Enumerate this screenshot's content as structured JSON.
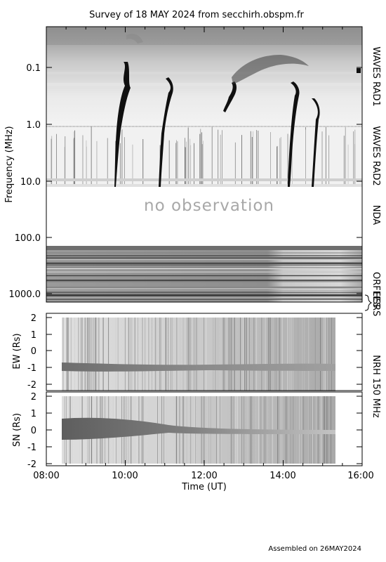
{
  "title": "Survey of 18 MAY 2024 from secchirh.obspm.fr",
  "footer": "Assembled on 26MAY2024",
  "no_observation": "no observation",
  "colors": {
    "background": "#ffffff",
    "axes": "#000000",
    "no_observation_text": "#a8a8a8"
  },
  "chart_data": [
    {
      "type": "heatmap",
      "panel": "dynamic spectrum",
      "ylabel": "Frequency (MHz)",
      "yscale": "log",
      "yaxis_inverted": true,
      "ylim": [
        0.02,
        1500
      ],
      "y_ticks": [
        "0.1",
        "1.0",
        "10.0",
        "100.0",
        "1000.0"
      ],
      "bands": [
        {
          "name": "WAVES RAD1",
          "freq_range_mhz": [
            0.02,
            1.0
          ],
          "has_data": true
        },
        {
          "name": "WAVES RAD2",
          "freq_range_mhz": [
            1.0,
            14.0
          ],
          "has_data": true
        },
        {
          "name": "NDA",
          "freq_range_mhz": [
            14.0,
            180.0
          ],
          "has_data": false
        },
        {
          "name": "ORFEES",
          "freq_range_mhz": [
            180.0,
            1000.0
          ],
          "has_data": true
        },
        {
          "name": "HSRS",
          "freq_range_mhz": [
            1000.0,
            1500.0
          ],
          "has_data": true
        }
      ],
      "type_iii_bursts_ut": [
        "09:45",
        "10:55",
        "12:25",
        "14:25",
        "14:45"
      ]
    },
    {
      "type": "heatmap",
      "panel": "NRH EW",
      "ylabel": "EW (Rs)",
      "ylim": [
        -2,
        2
      ],
      "y_ticks": [
        "2",
        "1",
        "0",
        "-1",
        "-2"
      ],
      "data_time_range_ut": [
        "08:25",
        "15:15"
      ]
    },
    {
      "type": "heatmap",
      "panel": "NRH SN",
      "ylabel": "SN (Rs)",
      "ylim": [
        -2,
        2
      ],
      "y_ticks": [
        "2",
        "1",
        "0",
        "-1",
        "-2"
      ],
      "data_time_range_ut": [
        "08:25",
        "15:15"
      ]
    }
  ],
  "nrh_label": "NRH 150 MHz",
  "xaxis": {
    "label": "Time (UT)",
    "ticks": [
      "08:00",
      "10:00",
      "12:00",
      "14:00",
      "16:00"
    ]
  }
}
